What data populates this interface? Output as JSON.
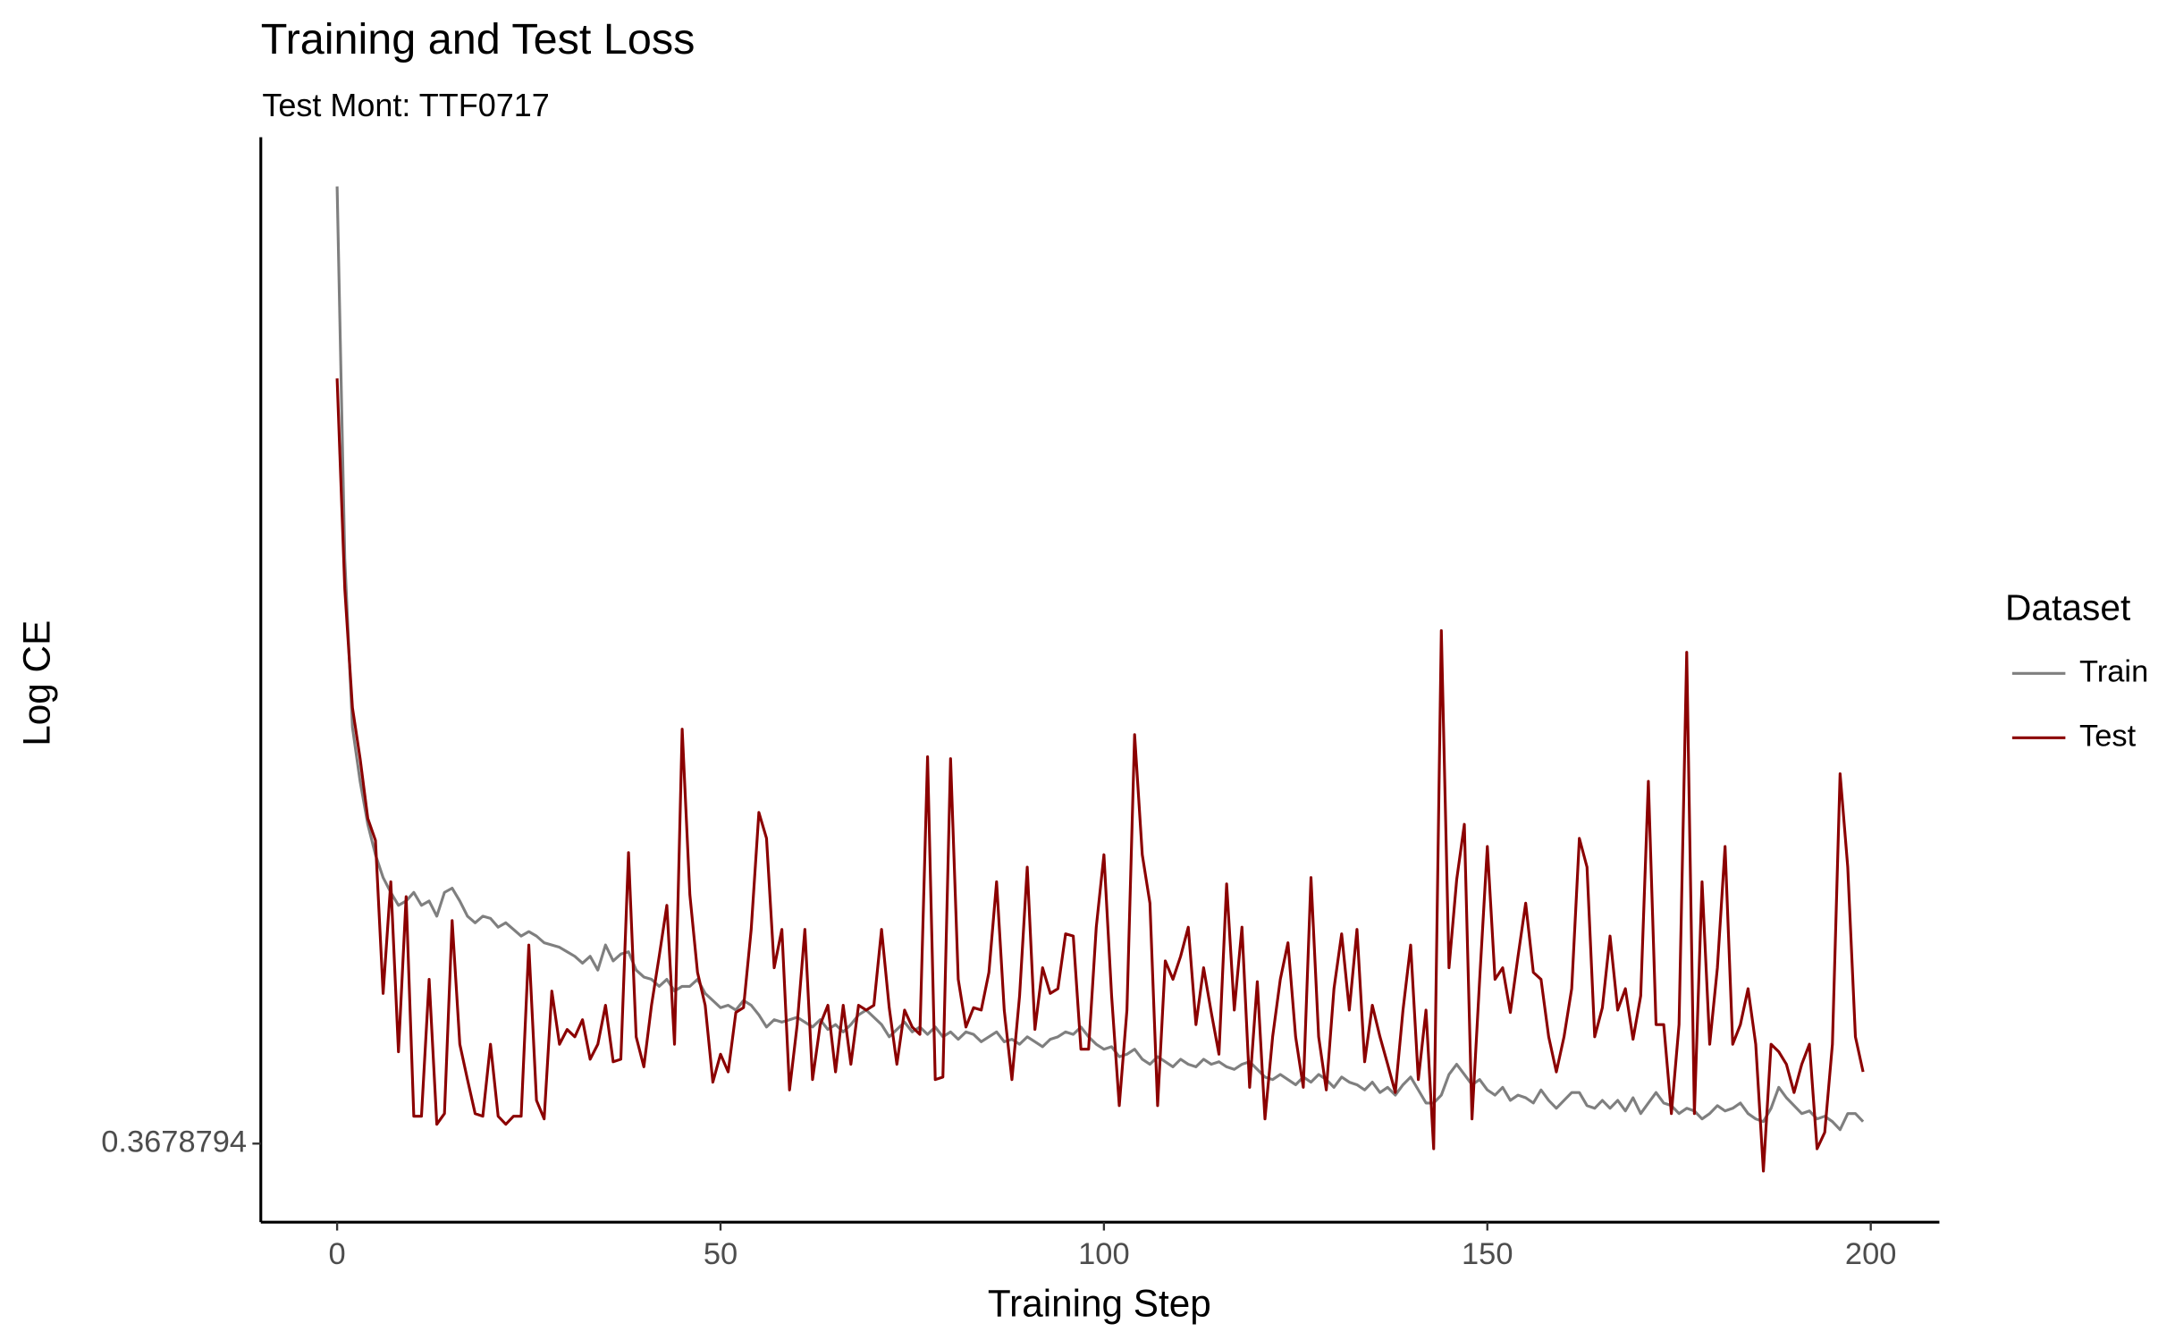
{
  "chart_data": {
    "type": "line",
    "title": "Training and Test Loss",
    "subtitle": "Test Mont: TTF0717",
    "x_label": "Training Step",
    "y_label": "Log CE",
    "legend_title": "Dataset",
    "legend_position": "right",
    "ylog": true,
    "grid": false,
    "xlim": [
      -9.95,
      208.95
    ],
    "ylim": [
      0.3403,
      0.9986
    ],
    "xticks": [
      0,
      50,
      100,
      150,
      200
    ],
    "yticks": [
      0.3678794
    ],
    "x": [
      0,
      1,
      2,
      3,
      4,
      5,
      6,
      7,
      8,
      9,
      10,
      11,
      12,
      13,
      14,
      15,
      16,
      17,
      18,
      19,
      20,
      21,
      22,
      23,
      24,
      25,
      26,
      27,
      28,
      29,
      30,
      31,
      32,
      33,
      34,
      35,
      36,
      37,
      38,
      39,
      40,
      41,
      42,
      43,
      44,
      45,
      46,
      47,
      48,
      49,
      50,
      51,
      52,
      53,
      54,
      55,
      56,
      57,
      58,
      59,
      60,
      61,
      62,
      63,
      64,
      65,
      66,
      67,
      68,
      69,
      70,
      71,
      72,
      73,
      74,
      75,
      76,
      77,
      78,
      79,
      80,
      81,
      82,
      83,
      84,
      85,
      86,
      87,
      88,
      89,
      90,
      91,
      92,
      93,
      94,
      95,
      96,
      97,
      98,
      99,
      100,
      101,
      102,
      103,
      104,
      105,
      106,
      107,
      108,
      109,
      110,
      111,
      112,
      113,
      114,
      115,
      116,
      117,
      118,
      119,
      120,
      121,
      122,
      123,
      124,
      125,
      126,
      127,
      128,
      129,
      130,
      131,
      132,
      133,
      134,
      135,
      136,
      137,
      138,
      139,
      140,
      141,
      142,
      143,
      144,
      145,
      146,
      147,
      148,
      149,
      150,
      151,
      152,
      153,
      154,
      155,
      156,
      157,
      158,
      159,
      160,
      161,
      162,
      163,
      164,
      165,
      166,
      167,
      168,
      169,
      170,
      171,
      172,
      173,
      174,
      175,
      176,
      177,
      178,
      179,
      180,
      181,
      182,
      183,
      184,
      185,
      186,
      187,
      188,
      189,
      190,
      191,
      192,
      193,
      194,
      195,
      196,
      197,
      198,
      199
    ],
    "series": [
      {
        "name": "Train",
        "color": "#7f7f7f",
        "values": [
          0.951,
          0.657,
          0.556,
          0.527,
          0.505,
          0.49,
          0.479,
          0.472,
          0.466,
          0.468,
          0.472,
          0.466,
          0.468,
          0.461,
          0.472,
          0.474,
          0.468,
          0.461,
          0.458,
          0.461,
          0.46,
          0.456,
          0.458,
          0.455,
          0.452,
          0.454,
          0.452,
          0.449,
          0.448,
          0.447,
          0.445,
          0.443,
          0.44,
          0.443,
          0.437,
          0.448,
          0.441,
          0.444,
          0.445,
          0.437,
          0.434,
          0.433,
          0.43,
          0.433,
          0.428,
          0.43,
          0.43,
          0.433,
          0.427,
          0.424,
          0.421,
          0.422,
          0.42,
          0.424,
          0.422,
          0.418,
          0.413,
          0.416,
          0.415,
          0.416,
          0.417,
          0.415,
          0.413,
          0.416,
          0.412,
          0.414,
          0.411,
          0.414,
          0.418,
          0.42,
          0.417,
          0.414,
          0.409,
          0.412,
          0.415,
          0.411,
          0.413,
          0.41,
          0.413,
          0.409,
          0.411,
          0.408,
          0.411,
          0.41,
          0.407,
          0.409,
          0.411,
          0.407,
          0.408,
          0.406,
          0.409,
          0.407,
          0.405,
          0.408,
          0.409,
          0.411,
          0.41,
          0.413,
          0.409,
          0.406,
          0.404,
          0.405,
          0.401,
          0.402,
          0.404,
          0.4,
          0.398,
          0.401,
          0.399,
          0.397,
          0.4,
          0.398,
          0.397,
          0.4,
          0.398,
          0.399,
          0.397,
          0.396,
          0.398,
          0.399,
          0.396,
          0.393,
          0.392,
          0.394,
          0.392,
          0.39,
          0.393,
          0.391,
          0.394,
          0.392,
          0.389,
          0.393,
          0.391,
          0.39,
          0.388,
          0.391,
          0.387,
          0.389,
          0.386,
          0.39,
          0.393,
          0.388,
          0.383,
          0.383,
          0.386,
          0.394,
          0.398,
          0.394,
          0.39,
          0.392,
          0.388,
          0.386,
          0.389,
          0.384,
          0.386,
          0.385,
          0.383,
          0.388,
          0.384,
          0.381,
          0.384,
          0.387,
          0.387,
          0.382,
          0.381,
          0.384,
          0.381,
          0.384,
          0.38,
          0.385,
          0.379,
          0.383,
          0.387,
          0.383,
          0.382,
          0.379,
          0.381,
          0.38,
          0.377,
          0.379,
          0.382,
          0.38,
          0.381,
          0.383,
          0.379,
          0.377,
          0.376,
          0.381,
          0.389,
          0.385,
          0.382,
          0.379,
          0.38,
          0.377,
          0.378,
          0.376,
          0.373,
          0.379,
          0.379,
          0.376
        ]
      },
      {
        "name": "Test",
        "color": "#8b0000",
        "values": [
          0.786,
          0.638,
          0.567,
          0.539,
          0.508,
          0.497,
          0.427,
          0.477,
          0.403,
          0.47,
          0.378,
          0.378,
          0.433,
          0.375,
          0.379,
          0.459,
          0.406,
          0.392,
          0.379,
          0.378,
          0.406,
          0.378,
          0.375,
          0.378,
          0.378,
          0.448,
          0.384,
          0.377,
          0.428,
          0.406,
          0.412,
          0.409,
          0.416,
          0.4,
          0.406,
          0.422,
          0.399,
          0.4,
          0.491,
          0.409,
          0.397,
          0.422,
          0.443,
          0.466,
          0.406,
          0.555,
          0.471,
          0.436,
          0.422,
          0.391,
          0.402,
          0.395,
          0.419,
          0.421,
          0.455,
          0.511,
          0.498,
          0.438,
          0.455,
          0.388,
          0.414,
          0.455,
          0.392,
          0.414,
          0.422,
          0.395,
          0.422,
          0.398,
          0.422,
          0.42,
          0.422,
          0.455,
          0.421,
          0.398,
          0.42,
          0.413,
          0.41,
          0.54,
          0.392,
          0.393,
          0.539,
          0.433,
          0.413,
          0.421,
          0.42,
          0.436,
          0.477,
          0.42,
          0.392,
          0.426,
          0.484,
          0.412,
          0.438,
          0.427,
          0.429,
          0.453,
          0.452,
          0.404,
          0.404,
          0.456,
          0.49,
          0.426,
          0.382,
          0.42,
          0.552,
          0.49,
          0.467,
          0.382,
          0.441,
          0.433,
          0.443,
          0.456,
          0.414,
          0.438,
          0.419,
          0.402,
          0.476,
          0.42,
          0.456,
          0.389,
          0.432,
          0.377,
          0.409,
          0.433,
          0.449,
          0.409,
          0.389,
          0.479,
          0.409,
          0.388,
          0.429,
          0.453,
          0.42,
          0.455,
          0.399,
          0.422,
          0.409,
          0.398,
          0.387,
          0.42,
          0.448,
          0.392,
          0.42,
          0.366,
          0.612,
          0.438,
          0.478,
          0.505,
          0.377,
          0.433,
          0.494,
          0.433,
          0.438,
          0.419,
          0.443,
          0.467,
          0.436,
          0.433,
          0.409,
          0.395,
          0.409,
          0.429,
          0.498,
          0.484,
          0.409,
          0.421,
          0.452,
          0.42,
          0.429,
          0.408,
          0.426,
          0.527,
          0.414,
          0.414,
          0.379,
          0.414,
          0.599,
          0.379,
          0.477,
          0.406,
          0.438,
          0.494,
          0.406,
          0.414,
          0.429,
          0.406,
          0.358,
          0.406,
          0.403,
          0.398,
          0.387,
          0.398,
          0.406,
          0.366,
          0.372,
          0.406,
          0.531,
          0.484,
          0.409,
          0.395
        ]
      }
    ]
  }
}
